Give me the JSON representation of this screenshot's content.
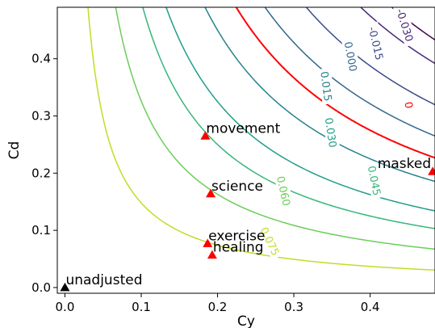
{
  "chart_data": {
    "type": "contour",
    "xlabel": "Cy",
    "ylabel": "Cd",
    "xlim": [
      -0.01,
      0.485
    ],
    "ylim": [
      -0.01,
      0.49
    ],
    "x_ticks": [
      0.0,
      0.1,
      0.2,
      0.3,
      0.4
    ],
    "x_tick_labels": [
      "0.0",
      "0.1",
      "0.2",
      "0.3",
      "0.4"
    ],
    "y_ticks": [
      0.0,
      0.1,
      0.2,
      0.3,
      0.4
    ],
    "y_tick_labels": [
      "0.0",
      "0.1",
      "0.2",
      "0.3",
      "0.4"
    ],
    "grid": false,
    "contours": [
      {
        "level": 0.075,
        "label": "0.075",
        "color": "#bddf26",
        "k": 0.0148,
        "label_at": [
          0.269,
          0.081
        ]
      },
      {
        "level": 0.06,
        "label": "0.060",
        "color": "#6ccd5a",
        "k": 0.0326,
        "label_at": [
          0.287,
          0.169
        ]
      },
      {
        "level": 0.045,
        "label": "0.045",
        "color": "#35b779",
        "k": 0.05,
        "label_at": [
          0.406,
          0.187
        ]
      },
      {
        "level": 0.03,
        "label": "0.030",
        "color": "#1f9e89",
        "k": 0.065,
        "label_at": [
          0.349,
          0.271
        ]
      },
      {
        "level": 0.015,
        "label": "0.015",
        "color": "#26828e",
        "k": 0.09,
        "label_at": [
          0.343,
          0.352
        ]
      },
      {
        "level": 0.0,
        "label": "0",
        "color": "#ff0000",
        "k": 0.11,
        "label_at": [
          0.451,
          0.319
        ],
        "red": true
      },
      {
        "level": 0.0,
        "label": "0.000",
        "color": "#31688e",
        "k": 0.1285,
        "label_at": [
          0.375,
          0.404
        ]
      },
      {
        "level": -0.015,
        "label": "-0.015",
        "color": "#3e4989",
        "k": 0.155,
        "label_at": [
          0.408,
          0.427
        ]
      },
      {
        "level": -0.03,
        "label": "-0.030",
        "color": "#482878",
        "k": 0.19,
        "label_at": [
          0.446,
          0.459
        ]
      },
      {
        "level": -0.045,
        "label": "",
        "color": "#440154",
        "k": 0.21,
        "label_at": null
      }
    ],
    "points": [
      {
        "label": "unadjusted",
        "x": 0.0,
        "y": 0.0,
        "color": "#000000"
      },
      {
        "label": "movement",
        "x": 0.184,
        "y": 0.265,
        "color": "#ff0000"
      },
      {
        "label": "science",
        "x": 0.191,
        "y": 0.164,
        "color": "#ff0000"
      },
      {
        "label": "exercise",
        "x": 0.187,
        "y": 0.077,
        "color": "#ff0000"
      },
      {
        "label": "healing",
        "x": 0.193,
        "y": 0.057,
        "color": "#ff0000"
      },
      {
        "label": "masked",
        "x": 0.482,
        "y": 0.203,
        "color": "#ff0000"
      }
    ]
  }
}
